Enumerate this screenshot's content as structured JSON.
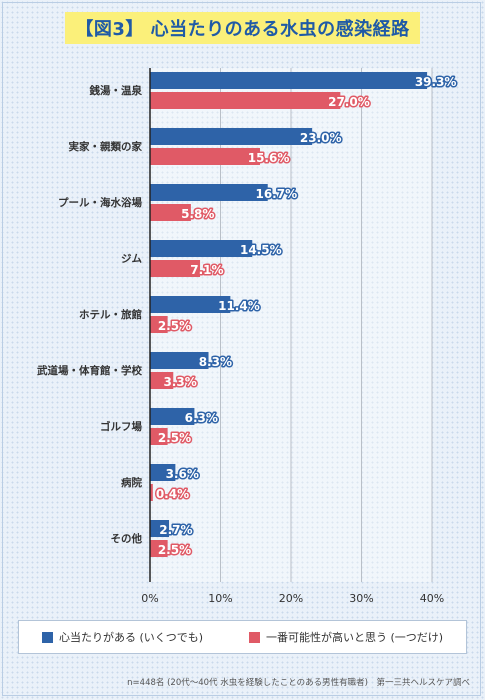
{
  "title": "【図3】 心当たりのある水虫の感染経路",
  "footnote": "n=448名 (20代〜40代 水虫を経験したことのある男性有職者)　第一三共ヘルスケア調べ",
  "colors": {
    "series1": "#2e63a8",
    "series2": "#e05a66",
    "grid": "#b9bfc7"
  },
  "chart_data": {
    "type": "bar",
    "orientation": "horizontal",
    "categories": [
      "銭湯・温泉",
      "実家・親類の家",
      "プール・海水浴場",
      "ジム",
      "ホテル・旅館",
      "武道場・体育館・学校",
      "ゴルフ場",
      "病院",
      "その他"
    ],
    "series": [
      {
        "name": "心当たりがある (いくつでも)",
        "values": [
          39.3,
          23.0,
          16.7,
          14.5,
          11.4,
          8.3,
          6.3,
          3.6,
          2.7
        ],
        "labels": [
          "39.3%",
          "23.0%",
          "16.7%",
          "14.5%",
          "11.4%",
          "8.3%",
          "6.3%",
          "3.6%",
          "2.7%"
        ]
      },
      {
        "name": "一番可能性が高いと思う (一つだけ)",
        "values": [
          27.0,
          15.6,
          5.8,
          7.1,
          2.5,
          3.3,
          2.5,
          0.4,
          2.5
        ],
        "labels": [
          "27.0%",
          "15.6%",
          "5.8%",
          "7.1%",
          "2.5%",
          "3.3%",
          "2.5%",
          "0.4%",
          "2.5%"
        ]
      }
    ],
    "xlim": [
      0,
      40
    ],
    "xticks": [
      "0%",
      "10%",
      "20%",
      "30%",
      "40%"
    ],
    "grid": true,
    "legend": "bottom"
  }
}
